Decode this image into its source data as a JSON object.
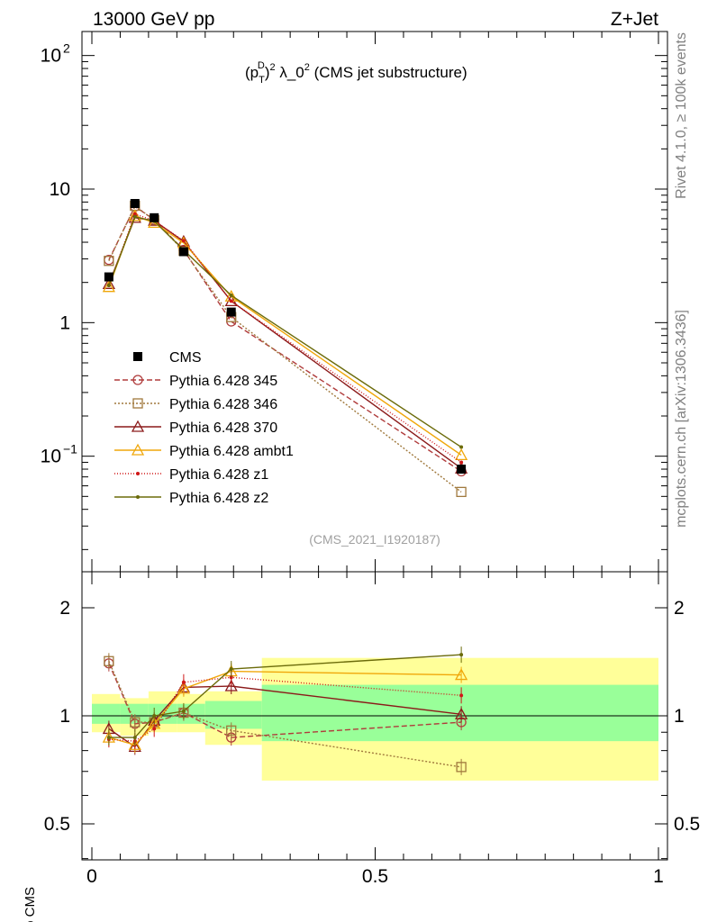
{
  "header": {
    "left": "13000 GeV pp",
    "right": "Z+Jet"
  },
  "side": {
    "top": "Rivet 4.1.0, ≥ 100k events",
    "bottom": "mcplots.cern.ch [arXiv:1306.3436]"
  },
  "chart_data": {
    "type": "line",
    "title": "(p_T^D)^2 λ_0^2 (CMS jet substructure)",
    "title_parts": {
      "p": "(p",
      "sub": "T",
      "sup": "D",
      "close": ")",
      "sq": "2",
      "lam": " λ_0",
      "sq2": "2",
      "tail": " (CMS jet substructure)"
    },
    "watermark": "(CMS_2021_I1920187)",
    "xlabel": "",
    "ylabel_ratio": "Ratio to CMS",
    "xlim": [
      0,
      1
    ],
    "ylim_main": [
      0.015,
      150
    ],
    "ylim_ratio": [
      0.4,
      2.4
    ],
    "x_ticks": [
      "0",
      "0.5",
      "1"
    ],
    "y_ticks_main": [
      "10^-1",
      "1",
      "10",
      "10^2"
    ],
    "y_ticks_ratio": [
      "0.5",
      "1",
      "2"
    ],
    "bins": [
      [
        0,
        0.05
      ],
      [
        0.05,
        0.1
      ],
      [
        0.1,
        0.15
      ],
      [
        0.15,
        0.2
      ],
      [
        0.2,
        0.3
      ],
      [
        0.3,
        1.0
      ]
    ],
    "x": [
      0.03,
      0.076,
      0.11,
      0.162,
      0.246,
      0.652
    ],
    "data": {
      "name": "CMS",
      "values": [
        2.2,
        7.8,
        6.1,
        3.4,
        1.2,
        0.08
      ],
      "band_inner": [
        [
          0.95,
          1.08
        ],
        [
          0.95,
          1.08
        ],
        [
          0.95,
          1.08
        ],
        [
          0.95,
          1.08
        ],
        [
          0.92,
          1.1
        ],
        [
          0.85,
          1.22
        ]
      ],
      "band_outer": [
        [
          0.9,
          1.15
        ],
        [
          0.88,
          1.12
        ],
        [
          0.9,
          1.17
        ],
        [
          0.9,
          1.15
        ],
        [
          0.83,
          1.17
        ],
        [
          0.66,
          1.45
        ]
      ]
    },
    "series": [
      {
        "name": "Pythia 6.428 345",
        "color": "#b03c3c",
        "dash": "6,3",
        "marker": "circle",
        "values": [
          2.95,
          7.4,
          5.9,
          3.5,
          1.02,
          0.077
        ],
        "ratio": [
          1.4,
          0.95,
          0.96,
          1.02,
          0.87,
          0.96
        ]
      },
      {
        "name": "Pythia 6.428 346",
        "color": "#a0793d",
        "dash": "2,2",
        "marker": "square",
        "values": [
          2.9,
          7.5,
          5.85,
          3.45,
          1.1,
          0.054
        ],
        "ratio": [
          1.42,
          0.96,
          0.96,
          1.02,
          0.91,
          0.72
        ]
      },
      {
        "name": "Pythia 6.428 370",
        "color": "#8b1a1a",
        "dash": "",
        "marker": "triangle",
        "values": [
          1.95,
          6.1,
          5.8,
          4.05,
          1.45,
          0.081
        ],
        "ratio": [
          0.92,
          0.82,
          0.97,
          1.2,
          1.21,
          1.01
        ]
      },
      {
        "name": "Pythia 6.428 ambt1",
        "color": "#f0a70a",
        "dash": "",
        "marker": "triangle",
        "values": [
          1.85,
          6.3,
          5.6,
          3.95,
          1.57,
          0.102
        ],
        "ratio": [
          0.87,
          0.83,
          0.95,
          1.19,
          1.33,
          1.3
        ]
      },
      {
        "name": "Pythia 6.428 z1",
        "color": "#d01818",
        "dash": "1,2",
        "marker": "dot",
        "values": [
          1.9,
          6.5,
          5.8,
          4.1,
          1.45,
          0.09
        ],
        "ratio": [
          0.86,
          0.85,
          0.92,
          1.24,
          1.28,
          1.14
        ]
      },
      {
        "name": "Pythia 6.428 z2",
        "color": "#6b6b0a",
        "dash": "",
        "marker": "dot",
        "values": [
          1.9,
          6.2,
          5.75,
          3.5,
          1.6,
          0.117
        ],
        "ratio": [
          0.87,
          0.87,
          1.0,
          1.03,
          1.35,
          1.48
        ]
      }
    ],
    "legend_position": "mid-left"
  }
}
